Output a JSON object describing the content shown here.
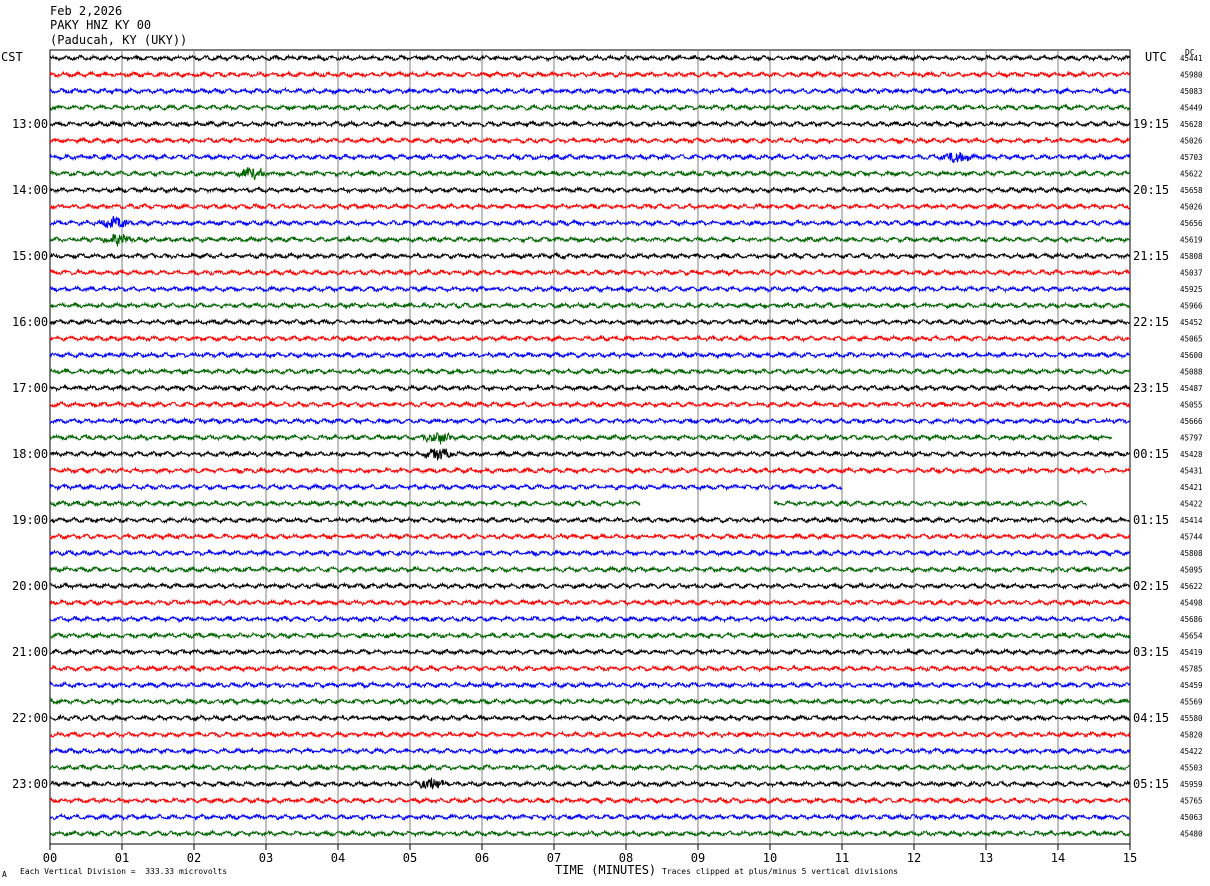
{
  "header": {
    "date": "Feb 2,2026",
    "station": "PAKY HNZ KY 00",
    "location": "(Paducah, KY (UKY))"
  },
  "left_axis_title": "CST",
  "right_axis_title": "UTC",
  "dc_label": "DC",
  "footer": {
    "division_note": "Each Vertical Division =  333.33 microvolts",
    "xlabel": "TIME (MINUTES)",
    "clip_note": "Traces clipped at plus/minus 5 vertical divisions",
    "corner_mark": "A"
  },
  "colors": {
    "trace_cycle": [
      "#000000",
      "#ff0000",
      "#0000ff",
      "#006400"
    ],
    "grid": "#808080",
    "frame": "#000000"
  },
  "chart_data": {
    "type": "line",
    "title": "PAKY HNZ KY 00",
    "xlabel": "TIME (MINUTES)",
    "xlim": [
      0,
      15
    ],
    "x_ticks": [
      "00",
      "01",
      "02",
      "03",
      "04",
      "05",
      "06",
      "07",
      "08",
      "09",
      "10",
      "11",
      "12",
      "13",
      "14",
      "15"
    ],
    "row_count": 48,
    "row_minutes": 15,
    "left_hour_labels": [
      {
        "row": 4,
        "label": "13:00"
      },
      {
        "row": 8,
        "label": "14:00"
      },
      {
        "row": 12,
        "label": "15:00"
      },
      {
        "row": 16,
        "label": "16:00"
      },
      {
        "row": 20,
        "label": "17:00"
      },
      {
        "row": 24,
        "label": "18:00"
      },
      {
        "row": 28,
        "label": "19:00"
      },
      {
        "row": 32,
        "label": "20:00"
      },
      {
        "row": 36,
        "label": "21:00"
      },
      {
        "row": 40,
        "label": "22:00"
      },
      {
        "row": 44,
        "label": "23:00"
      }
    ],
    "right_hour_labels": [
      {
        "row": 4,
        "label": "19:15"
      },
      {
        "row": 8,
        "label": "20:15"
      },
      {
        "row": 12,
        "label": "21:15"
      },
      {
        "row": 16,
        "label": "22:15"
      },
      {
        "row": 20,
        "label": "23:15"
      },
      {
        "row": 24,
        "label": "00:15"
      },
      {
        "row": 28,
        "label": "01:15"
      },
      {
        "row": 32,
        "label": "02:15"
      },
      {
        "row": 36,
        "label": "03:15"
      },
      {
        "row": 40,
        "label": "04:15"
      },
      {
        "row": 44,
        "label": "05:15"
      }
    ],
    "dc_offsets": [
      "45441",
      "45980",
      "45083",
      "45449",
      "45628",
      "45026",
      "45703",
      "45622",
      "45658",
      "45026",
      "45656",
      "45619",
      "45808",
      "45037",
      "45925",
      "45966",
      "45452",
      "45065",
      "45600",
      "45088",
      "45487",
      "45055",
      "45666",
      "45797",
      "45428",
      "45431",
      "45421",
      "45422",
      "45414",
      "45744",
      "45808",
      "45095",
      "45622",
      "45498",
      "45686",
      "45654",
      "45419",
      "45785",
      "45459",
      "45569",
      "45580",
      "45820",
      "45422",
      "45503",
      "45959",
      "45765",
      "45063",
      "45480"
    ],
    "trace_end_minutes": {
      "23": 14.75,
      "26": 11.0,
      "27": 14.4
    },
    "gaps": [
      {
        "row": 27,
        "from_minute": 8.2,
        "to_minute": 10.05
      }
    ],
    "bursts": [
      {
        "row": 6,
        "minute": 12.6
      },
      {
        "row": 7,
        "minute": 2.8
      },
      {
        "row": 10,
        "minute": 0.9
      },
      {
        "row": 11,
        "minute": 0.95
      },
      {
        "row": 23,
        "minute": 5.4
      },
      {
        "row": 24,
        "minute": 5.4
      },
      {
        "row": 44,
        "minute": 5.3
      }
    ]
  }
}
